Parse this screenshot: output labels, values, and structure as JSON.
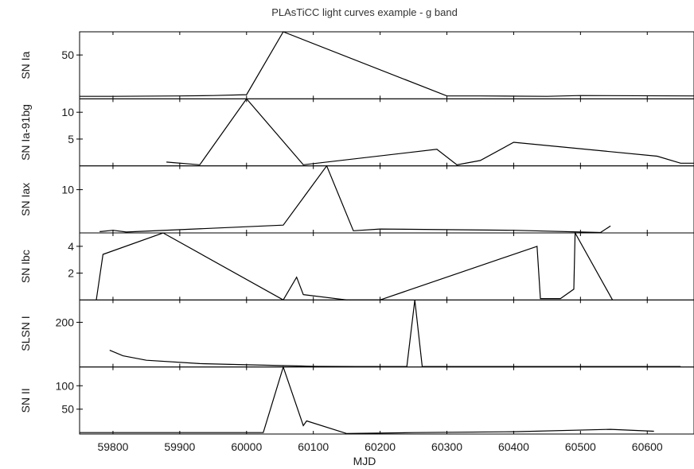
{
  "chart_data": {
    "type": "line",
    "title": "PLAsTiCC light curves example - g band",
    "xlabel": "MJD",
    "xlim": [
      59750,
      60670
    ],
    "x_ticks": [
      59800,
      59900,
      60000,
      60100,
      60200,
      60300,
      60400,
      60500,
      60600
    ],
    "line_color": "#000000",
    "panels": [
      {
        "ylabel": "SN Ia",
        "ylim": [
          -3,
          78
        ],
        "y_ticks": [
          50
        ],
        "x": [
          59750,
          59800,
          59900,
          59950,
          60000,
          60055,
          60300,
          60350,
          60450,
          60500,
          60670
        ],
        "y": [
          0,
          0,
          0.5,
          1,
          2,
          78,
          0.5,
          0.5,
          0,
          1,
          0.5
        ]
      },
      {
        "ylabel": "SN Ia-91bg",
        "ylim": [
          0,
          12.5
        ],
        "y_ticks": [
          5,
          10
        ],
        "x": [
          59880,
          59930,
          60000,
          60085,
          60285,
          60315,
          60350,
          60400,
          60615,
          60650,
          60670
        ],
        "y": [
          0.7,
          0.2,
          12.5,
          0.2,
          3.1,
          0.2,
          1.0,
          4.4,
          1.8,
          0.5,
          0.5
        ]
      },
      {
        "ylabel": "SN Iax",
        "ylim": [
          0,
          15.5
        ],
        "y_ticks": [
          10
        ],
        "x": [
          59780,
          59800,
          59820,
          60055,
          60120,
          60160,
          60200,
          60400,
          60530,
          60545
        ],
        "y": [
          0.3,
          0.6,
          0.2,
          1.8,
          15.5,
          0.5,
          0.9,
          0.6,
          0.1,
          1.6
        ]
      },
      {
        "ylabel": "SN Ibc",
        "ylim": [
          0,
          5
        ],
        "y_ticks": [
          2,
          4
        ],
        "x": [
          59775,
          59785,
          59875,
          60055,
          60075,
          60085,
          60150,
          60200,
          60435,
          60440,
          60470,
          60490,
          60492,
          60548
        ],
        "y": [
          0,
          3.4,
          5.0,
          0,
          1.7,
          0.4,
          0,
          0,
          4.0,
          0.1,
          0.1,
          0.8,
          5.0,
          0
        ]
      },
      {
        "ylabel": "SLSN I",
        "ylim": [
          0,
          300
        ],
        "y_ticks": [
          200
        ],
        "x": [
          59795,
          59815,
          59850,
          59930,
          60000,
          60100,
          60165,
          60240,
          60252,
          60263,
          60400,
          60650
        ],
        "y": [
          75,
          50,
          30,
          15,
          10,
          3,
          2,
          2,
          300,
          2,
          2,
          2
        ]
      },
      {
        "ylabel": "SN II",
        "ylim": [
          -3,
          140
        ],
        "y_ticks": [
          50,
          100
        ],
        "x": [
          59750,
          60025,
          60055,
          60085,
          60090,
          60150,
          60250,
          60400,
          60545,
          60610
        ],
        "y": [
          0,
          0,
          140,
          15,
          25,
          -2,
          0,
          2,
          7,
          3
        ]
      }
    ]
  }
}
